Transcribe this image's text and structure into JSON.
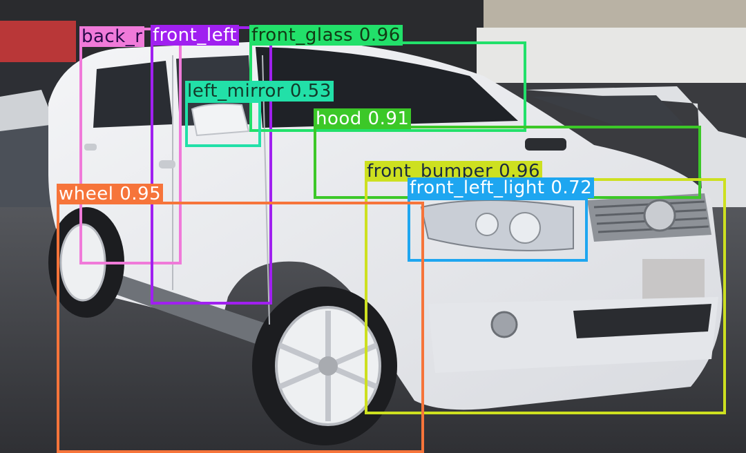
{
  "image": {
    "subject": "white SUV photographed in a parking lot",
    "license_plate": "blurred",
    "background_sign": "blurred"
  },
  "detections": [
    {
      "label": "back_right_door",
      "score": "",
      "caption": "back_r",
      "color": "#f07ad9",
      "text_color": "#2a0a4a"
    },
    {
      "label": "front_left_door",
      "score": "",
      "caption": "front_left",
      "color": "#a020f0",
      "text_color": "#ffffff"
    },
    {
      "label": "front_glass",
      "score": 0.96,
      "caption": "front_glass 0.96",
      "color": "#22e06a",
      "text_color": "#123a14"
    },
    {
      "label": "left_mirror",
      "score": 0.53,
      "caption": "left_mirror 0.53",
      "color": "#22e0a8",
      "text_color": "#123a2a"
    },
    {
      "label": "hood",
      "score": 0.91,
      "caption": "hood 0.91",
      "color": "#3cc828",
      "text_color": "#ffffff"
    },
    {
      "label": "front_bumper",
      "score": 0.96,
      "caption": "front_bumper 0.96",
      "color": "#cde020",
      "text_color": "#1a2a40"
    },
    {
      "label": "front_left_light",
      "score": 0.72,
      "caption": "front_left_light 0.72",
      "color": "#1ea6f0",
      "text_color": "#ffffff"
    },
    {
      "label": "wheel",
      "score": 0.95,
      "caption": "wheel 0.95",
      "color": "#f6743a",
      "text_color": "#ffffff"
    }
  ]
}
